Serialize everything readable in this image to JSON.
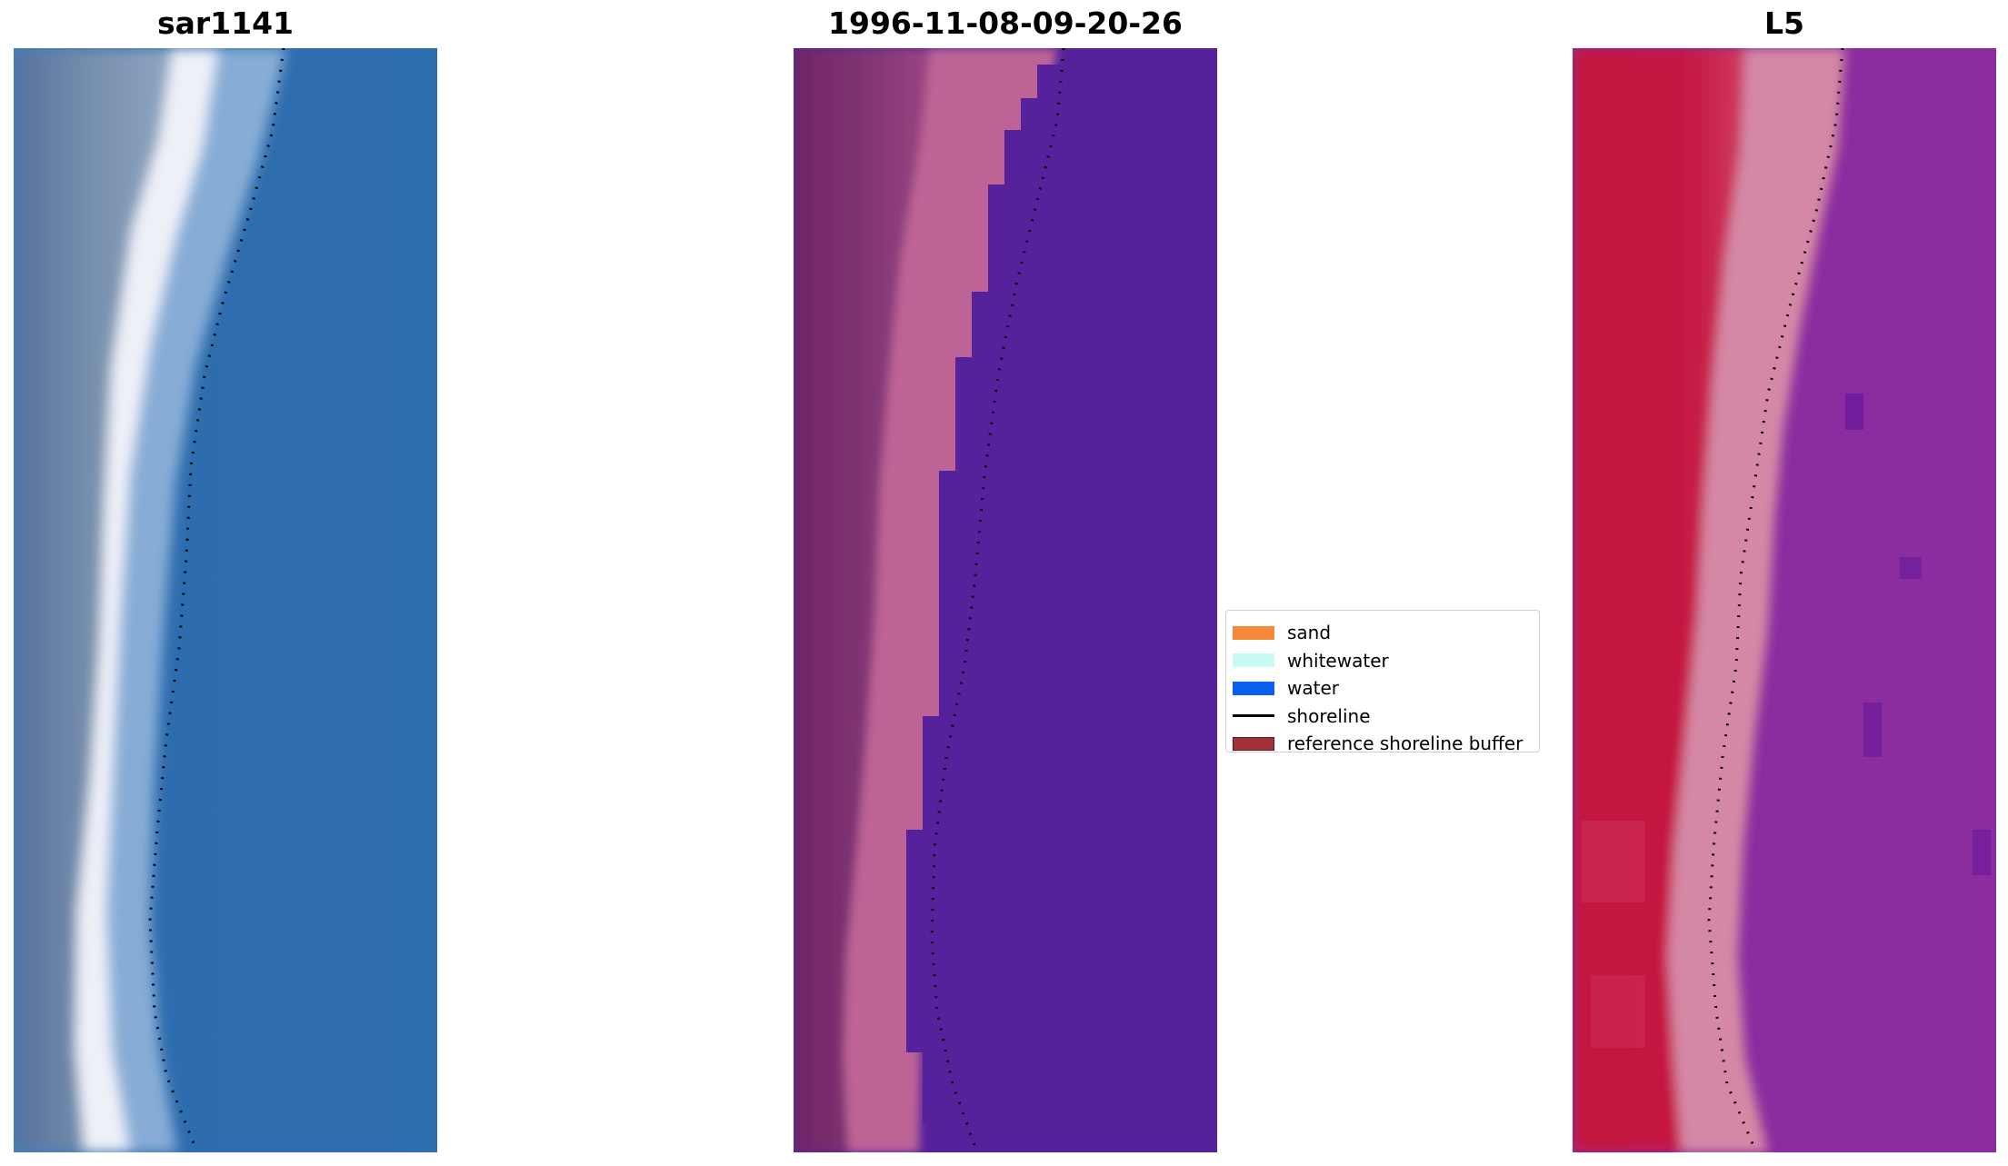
{
  "panels": [
    {
      "title": "sar1141",
      "image": "true-color satellite image: grey-blue land strip on the left, bright white surf band, blue ocean on the right"
    },
    {
      "title": "1996-11-08-09-20-26",
      "image": "classified image: purple land strip, pink sand band, uniform violet water to the right"
    },
    {
      "title": "L5",
      "image": "index image: red land strip, pink sand band, purple water with pixel texture"
    }
  ],
  "legend": {
    "items": [
      {
        "label": "sand",
        "kind": "patch",
        "color": "#f5893a"
      },
      {
        "label": "whitewater",
        "kind": "patch",
        "color": "#c9fbf6"
      },
      {
        "label": "water",
        "kind": "patch",
        "color": "#0a5ff0"
      },
      {
        "label": "shoreline",
        "kind": "line",
        "color": "#000000"
      },
      {
        "label": "reference shoreline buffer",
        "kind": "patch",
        "color": "#a3303a"
      }
    ]
  },
  "colors": {
    "panel1": {
      "land": "#6f86a6",
      "surf": "#ffffff",
      "water": "#2e6fad"
    },
    "panel2": {
      "land": "#7e3275",
      "sand": "#bd6496",
      "water": "#55229b"
    },
    "panel3": {
      "land": "#c3133f",
      "sand": "#d488a6",
      "water": "#8b2c9f"
    },
    "shoreline_dots": "#000000"
  }
}
